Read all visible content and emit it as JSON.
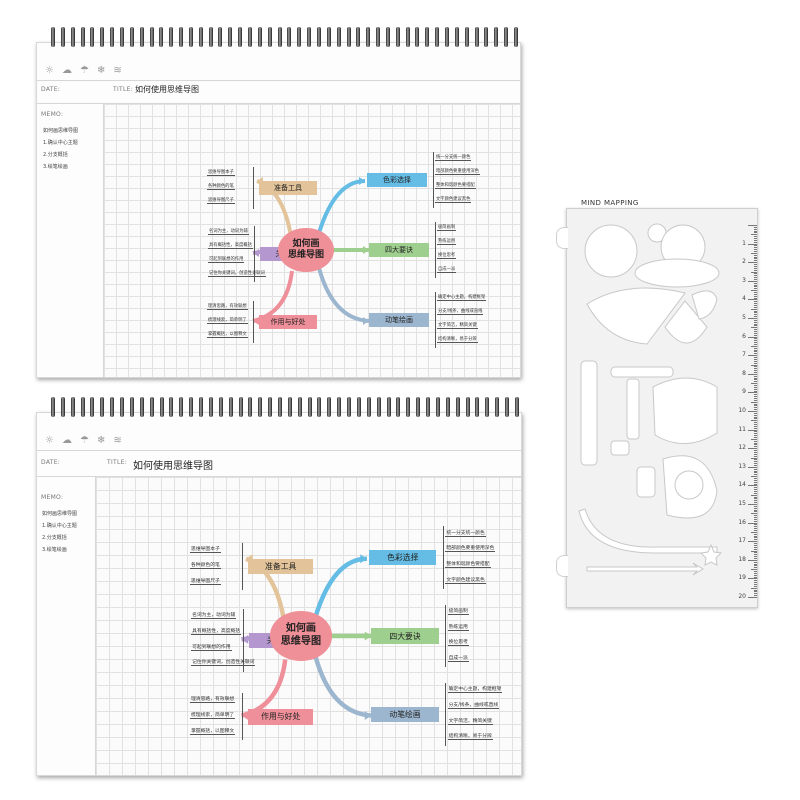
{
  "top_notebook": {
    "weather_icons": [
      "sun-icon",
      "cloud-icon",
      "rain-icon",
      "snow-icon",
      "wind-icon"
    ],
    "date_label": "DATE:",
    "title_label": "TITLE:",
    "title": "如何使用思维导图",
    "memo_label": "MEMO:",
    "memo_items": [
      "如何画思维导图",
      "1.确认中心主题",
      "2.分支概括",
      "3.绘笔绘画"
    ]
  },
  "bottom_notebook": {
    "weather_icons": [
      "sun-icon",
      "cloud-icon",
      "rain-icon",
      "snow-icon",
      "wind-icon"
    ],
    "date_label": "DATE:",
    "title_label": "TITLE:",
    "title": "如何使用思维导图",
    "memo_label": "MEMO:",
    "memo_items": [
      "如何画思维导图",
      "1.确认中心主题",
      "2.分支概括",
      "3.绘笔绘画"
    ]
  },
  "mindmap": {
    "center_line1": "如何画",
    "center_line2": "思维导图",
    "branches": {
      "prep": {
        "label": "准备工具",
        "leaves": [
          "思维导图本子",
          "各种颜色的笔",
          "思维导图尺子"
        ]
      },
      "keywords": {
        "label": "关键词",
        "leaves": [
          "名词为主，动词为辅",
          "具有概括性，高度概括",
          "可起到联想的作用",
          "记住你关键词，创造性关联词"
        ]
      },
      "benefit": {
        "label": "作用与好处",
        "leaves": [
          "理清思路，有效联想",
          "梳理线索，简单明了",
          "掌握概括，以图释文"
        ]
      },
      "color": {
        "label": "色彩选择",
        "leaves": [
          "统一分支统一颜色",
          "暗部颜色要重使用深色",
          "整体和谐颜色要搭配",
          "文字颜色建议黑色"
        ]
      },
      "four": {
        "label": "四大要诀",
        "leaves": [
          "极简画制",
          "熟练运用",
          "换位思考",
          "自成一派"
        ]
      },
      "draw": {
        "label": "动笔绘画",
        "leaves": [
          "确定中心主题，构建框架",
          "分支/线条，曲线或直线",
          "文字简洁，精简关键",
          "结构清晰，易于分辨"
        ]
      }
    },
    "colors": {
      "center": "#ef8f97",
      "prep": "#e3c49a",
      "keywords": "#b597cf",
      "benefit": "#ee8f99",
      "color": "#65bde5",
      "four": "#9fcf8f",
      "draw": "#9cb6cf"
    }
  },
  "stencil": {
    "title": "MIND MAPPING",
    "ruler_numbers": [
      "1",
      "2",
      "3",
      "4",
      "5",
      "6",
      "7",
      "8",
      "9",
      "10",
      "11",
      "12",
      "13",
      "14",
      "15",
      "16",
      "17",
      "18",
      "19",
      "20"
    ]
  }
}
